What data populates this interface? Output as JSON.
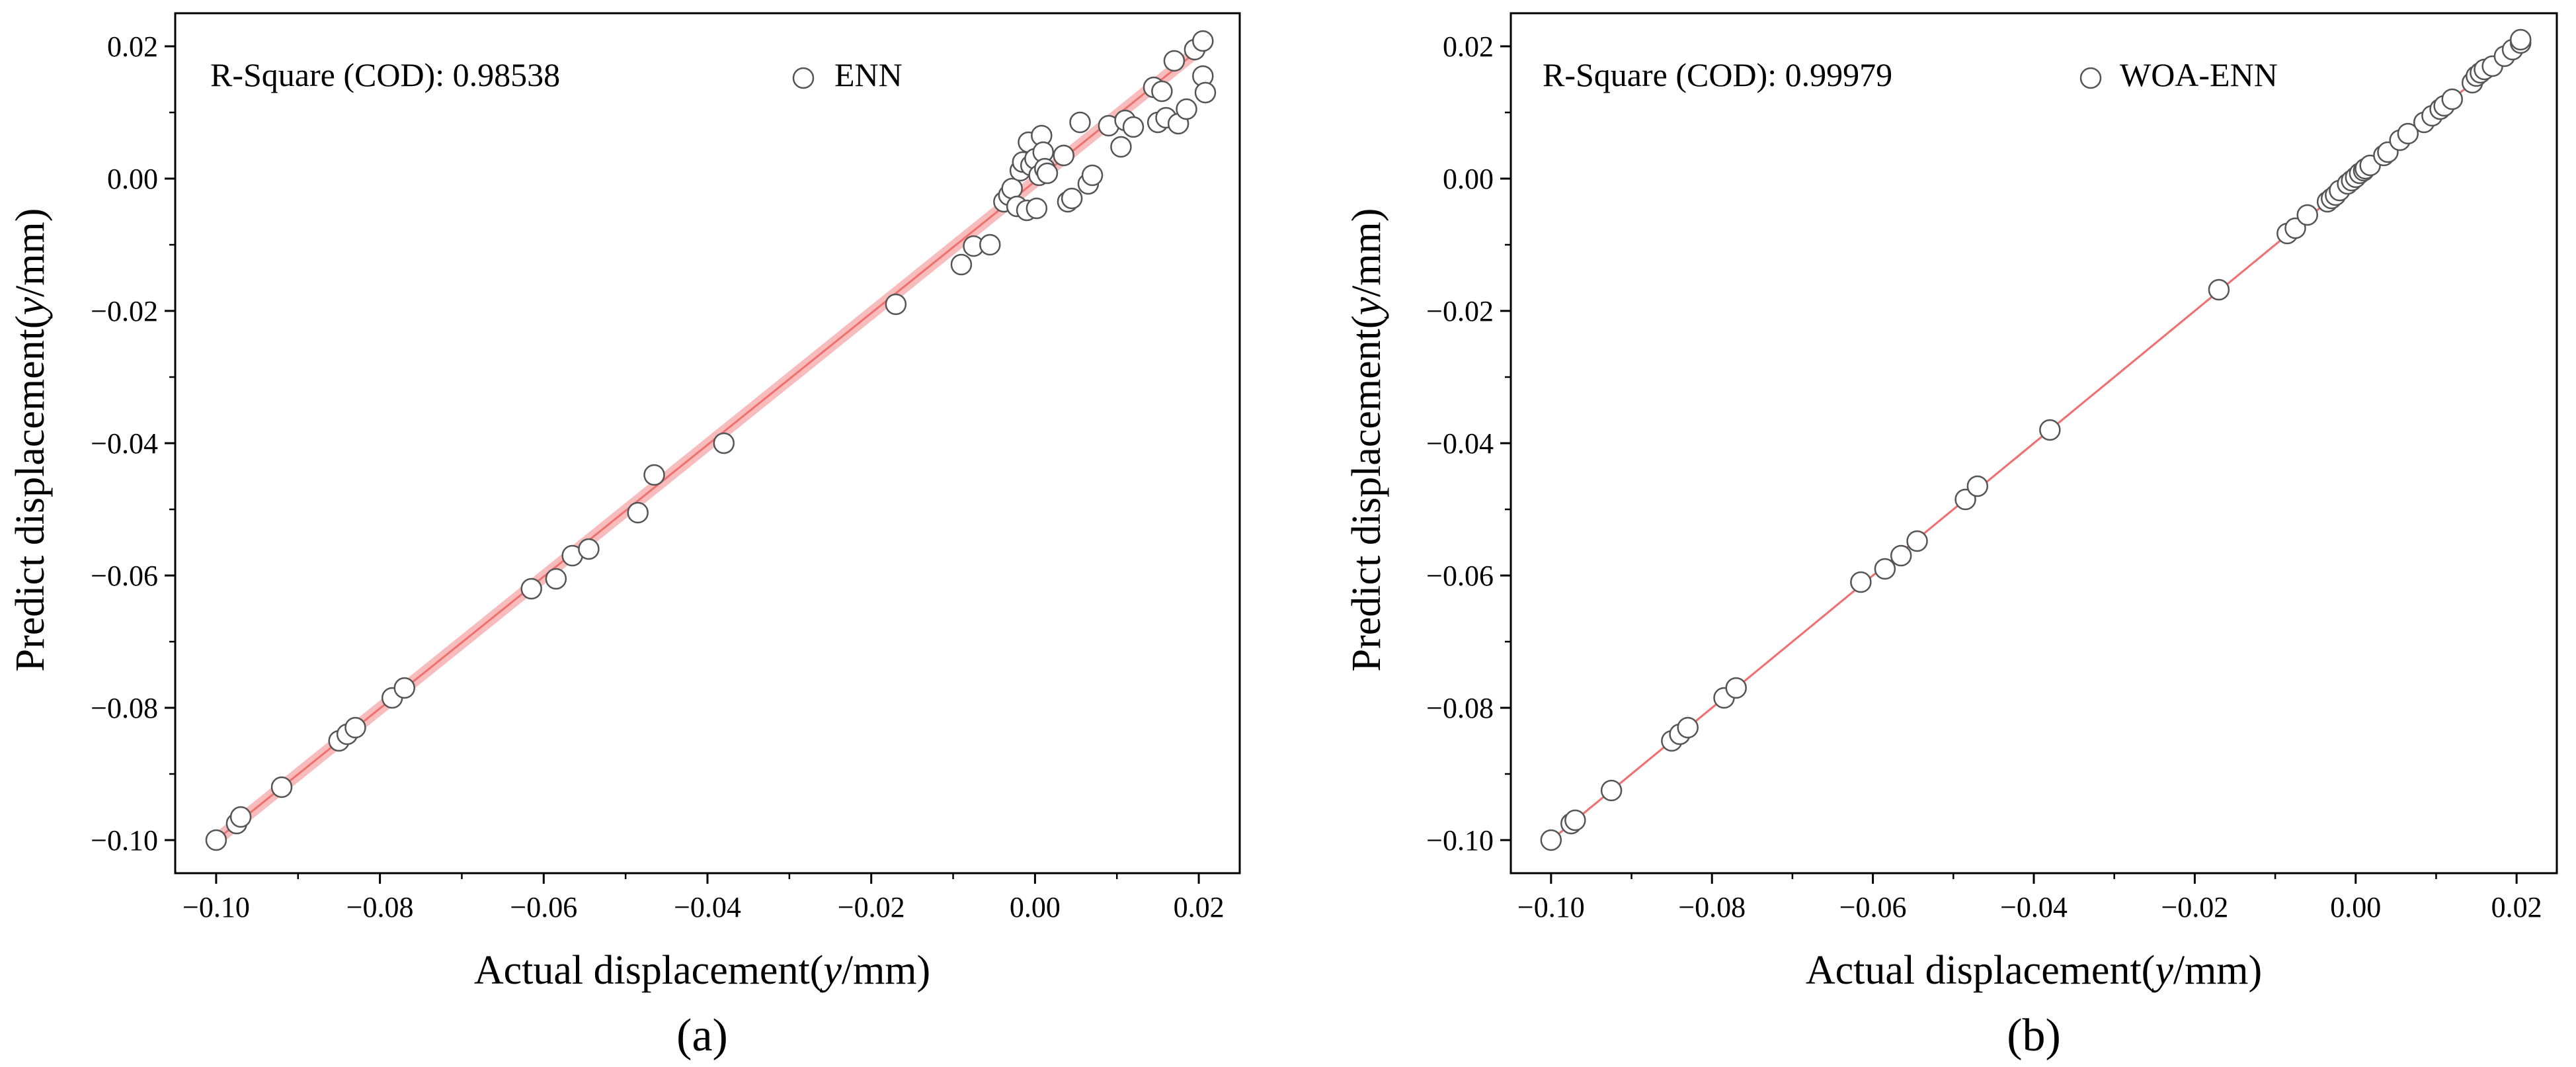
{
  "chart_data": [
    {
      "id": "a",
      "type": "scatter",
      "caption": "(a)",
      "xlabel": {
        "prefix": "Actual displacement(",
        "var": "y",
        "suffix": "/mm)"
      },
      "ylabel": {
        "prefix": "Predict displacement(",
        "var": "y",
        "suffix": "/mm)"
      },
      "xlim": [
        -0.105,
        0.025
      ],
      "ylim": [
        -0.105,
        0.025
      ],
      "xticks": [
        -0.1,
        -0.08,
        -0.06,
        -0.04,
        -0.02,
        0.0,
        0.02
      ],
      "xtick_labels": [
        "−0.10",
        "−0.08",
        "−0.06",
        "−0.04",
        "−0.02",
        "0.00",
        "0.02"
      ],
      "yticks": [
        -0.1,
        -0.08,
        -0.06,
        -0.04,
        -0.02,
        0.0,
        0.02
      ],
      "ytick_labels": [
        "−0.10",
        "−0.08",
        "−0.06",
        "−0.04",
        "−0.02",
        "0.00",
        "0.02"
      ],
      "r_square_text": "R-Square (COD): 0.98538",
      "legend": "ENN",
      "fit_line": {
        "x": [
          -0.1,
          0.021
        ],
        "y": [
          -0.1,
          0.0205
        ],
        "color": "#f07070",
        "band_color": "#f5a5a5",
        "band_halfwidth": 0.0012
      },
      "points": [
        [
          -0.1,
          -0.1
        ],
        [
          -0.0975,
          -0.0975
        ],
        [
          -0.097,
          -0.0965
        ],
        [
          -0.092,
          -0.092
        ],
        [
          -0.085,
          -0.085
        ],
        [
          -0.084,
          -0.084
        ],
        [
          -0.083,
          -0.083
        ],
        [
          -0.0785,
          -0.0785
        ],
        [
          -0.077,
          -0.077
        ],
        [
          -0.0615,
          -0.062
        ],
        [
          -0.0585,
          -0.0605
        ],
        [
          -0.0565,
          -0.057
        ],
        [
          -0.0545,
          -0.056
        ],
        [
          -0.0485,
          -0.0505
        ],
        [
          -0.0465,
          -0.0448
        ],
        [
          -0.038,
          -0.04
        ],
        [
          -0.017,
          -0.019
        ],
        [
          -0.009,
          -0.013
        ],
        [
          -0.0075,
          -0.0102
        ],
        [
          -0.0055,
          -0.01
        ],
        [
          -0.0038,
          -0.0035
        ],
        [
          -0.0032,
          -0.0025
        ],
        [
          -0.0028,
          -0.0015
        ],
        [
          -0.0022,
          -0.0042
        ],
        [
          -0.0018,
          0.0012
        ],
        [
          -0.0015,
          0.0025
        ],
        [
          -0.001,
          -0.0048
        ],
        [
          -0.0008,
          0.0055
        ],
        [
          -0.0005,
          0.002
        ],
        [
          0.0,
          0.003
        ],
        [
          0.0002,
          -0.0045
        ],
        [
          0.0005,
          0.0005
        ],
        [
          0.0008,
          0.0065
        ],
        [
          0.001,
          0.004
        ],
        [
          0.0012,
          0.0015
        ],
        [
          0.0015,
          0.0008
        ],
        [
          0.0035,
          0.0035
        ],
        [
          0.004,
          -0.0035
        ],
        [
          0.0045,
          -0.003
        ],
        [
          0.0055,
          0.0085
        ],
        [
          0.0065,
          -0.0008
        ],
        [
          0.007,
          0.0005
        ],
        [
          0.009,
          0.008
        ],
        [
          0.0105,
          0.0048
        ],
        [
          0.011,
          0.0088
        ],
        [
          0.012,
          0.0078
        ],
        [
          0.0145,
          0.0138
        ],
        [
          0.015,
          0.0085
        ],
        [
          0.0155,
          0.0132
        ],
        [
          0.016,
          0.0092
        ],
        [
          0.017,
          0.0178
        ],
        [
          0.0175,
          0.0083
        ],
        [
          0.0185,
          0.0105
        ],
        [
          0.0195,
          0.0195
        ],
        [
          0.0205,
          0.0208
        ],
        [
          0.0205,
          0.0155
        ],
        [
          0.0208,
          0.013
        ]
      ]
    },
    {
      "id": "b",
      "type": "scatter",
      "caption": "(b)",
      "xlabel": {
        "prefix": "Actual displacement(",
        "var": "y",
        "suffix": "/mm)"
      },
      "ylabel": {
        "prefix": "Predict displacement(",
        "var": "y",
        "suffix": "/mm)"
      },
      "xlim": [
        -0.105,
        0.025
      ],
      "ylim": [
        -0.105,
        0.025
      ],
      "xticks": [
        -0.1,
        -0.08,
        -0.06,
        -0.04,
        -0.02,
        0.0,
        0.02
      ],
      "xtick_labels": [
        "−0.10",
        "−0.08",
        "−0.06",
        "−0.04",
        "−0.02",
        "0.00",
        "0.02"
      ],
      "yticks": [
        -0.1,
        -0.08,
        -0.06,
        -0.04,
        -0.02,
        0.0,
        0.02
      ],
      "ytick_labels": [
        "−0.10",
        "−0.08",
        "−0.06",
        "−0.04",
        "−0.02",
        "0.00",
        "0.02"
      ],
      "r_square_text": "R-Square (COD): 0.99979",
      "legend": "WOA-ENN",
      "fit_line": {
        "x": [
          -0.1,
          0.021
        ],
        "y": [
          -0.1,
          0.021
        ],
        "color": "#f07070",
        "band_color": "#f5a5a5",
        "band_halfwidth": 0.0002
      },
      "points": [
        [
          -0.1,
          -0.1
        ],
        [
          -0.0975,
          -0.0975
        ],
        [
          -0.097,
          -0.097
        ],
        [
          -0.0925,
          -0.0925
        ],
        [
          -0.085,
          -0.085
        ],
        [
          -0.084,
          -0.084
        ],
        [
          -0.083,
          -0.083
        ],
        [
          -0.0785,
          -0.0785
        ],
        [
          -0.077,
          -0.077
        ],
        [
          -0.0615,
          -0.061
        ],
        [
          -0.0585,
          -0.059
        ],
        [
          -0.0565,
          -0.057
        ],
        [
          -0.0545,
          -0.0548
        ],
        [
          -0.0485,
          -0.0485
        ],
        [
          -0.047,
          -0.0465
        ],
        [
          -0.038,
          -0.038
        ],
        [
          -0.017,
          -0.0168
        ],
        [
          -0.0085,
          -0.0083
        ],
        [
          -0.0075,
          -0.0075
        ],
        [
          -0.006,
          -0.0055
        ],
        [
          -0.0035,
          -0.0035
        ],
        [
          -0.003,
          -0.003
        ],
        [
          -0.0025,
          -0.0025
        ],
        [
          -0.002,
          -0.0018
        ],
        [
          -0.001,
          -0.0008
        ],
        [
          -0.0005,
          -0.0003
        ],
        [
          0.0,
          0.0002
        ],
        [
          0.0005,
          0.0008
        ],
        [
          0.001,
          0.0012
        ],
        [
          0.0012,
          0.0015
        ],
        [
          0.0018,
          0.002
        ],
        [
          0.0035,
          0.0035
        ],
        [
          0.004,
          0.004
        ],
        [
          0.0055,
          0.0058
        ],
        [
          0.0065,
          0.0068
        ],
        [
          0.0085,
          0.0085
        ],
        [
          0.0095,
          0.0095
        ],
        [
          0.0105,
          0.0105
        ],
        [
          0.011,
          0.011
        ],
        [
          0.012,
          0.012
        ],
        [
          0.0145,
          0.0145
        ],
        [
          0.015,
          0.0155
        ],
        [
          0.0155,
          0.016
        ],
        [
          0.016,
          0.0165
        ],
        [
          0.017,
          0.017
        ],
        [
          0.0185,
          0.0185
        ],
        [
          0.0195,
          0.0195
        ],
        [
          0.0205,
          0.0205
        ],
        [
          0.0205,
          0.021
        ]
      ]
    }
  ]
}
